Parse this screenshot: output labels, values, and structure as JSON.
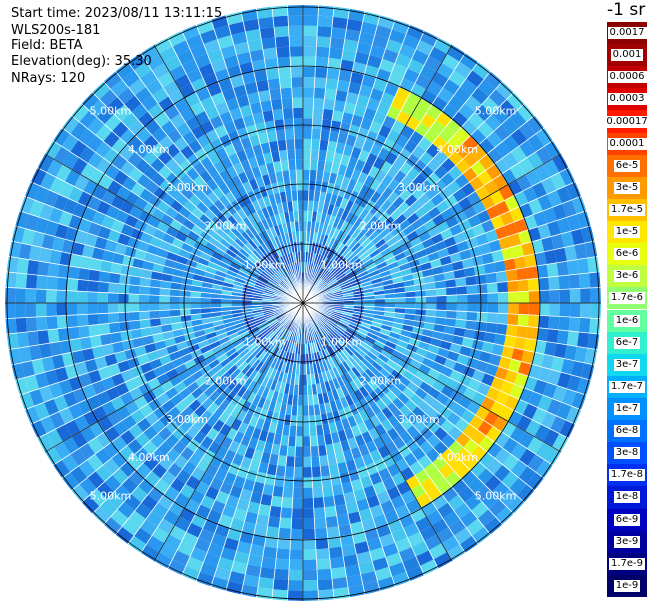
{
  "header": {
    "start_time": "Start time: 2023/08/11 13:11:15",
    "device": "WLS200s-181",
    "field": "Field: BETA",
    "elevation": "Elevation(deg): 35.30",
    "nrays": "NRays: 120"
  },
  "colorbar": {
    "title": "-1 sr",
    "labels": [
      "0.0017",
      "0.001",
      "0.0006",
      "0.0003",
      "0.00017",
      "0.0001",
      "6e-5",
      "3e-5",
      "1.7e-5",
      "1e-5",
      "6e-6",
      "3e-6",
      "1.7e-6",
      "1e-6",
      "6e-7",
      "3e-7",
      "1.7e-7",
      "1e-7",
      "6e-8",
      "3e-8",
      "1.7e-8",
      "1e-8",
      "6e-9",
      "3e-9",
      "1.7e-9",
      "1e-9"
    ],
    "colors": [
      "#8b0000",
      "#a00000",
      "#c00000",
      "#e00000",
      "#ff1a00",
      "#ff4400",
      "#ff7000",
      "#ff9900",
      "#ffc000",
      "#ffe800",
      "#e8ff10",
      "#c0ff40",
      "#90ff70",
      "#60ffa0",
      "#30f0d0",
      "#10d8f0",
      "#00b0ff",
      "#0090ff",
      "#0070ff",
      "#0050ff",
      "#0030f0",
      "#0018d8",
      "#0000c0",
      "#0000a0",
      "#000080",
      "#000066"
    ]
  },
  "range_rings": {
    "labels": [
      "1.00km",
      "2.00km",
      "3.00km",
      "4.00km",
      "5.00km"
    ]
  },
  "palette": {
    "rays": [
      "#1f7fe0",
      "#2a97f0",
      "#3aaef5",
      "#50c0f5",
      "#2f8fe8",
      "#1868d8",
      "#45c6ee",
      "#5ad8ef",
      "#2594ea"
    ],
    "grid": "#000000",
    "spoke": "#ffffff"
  }
}
